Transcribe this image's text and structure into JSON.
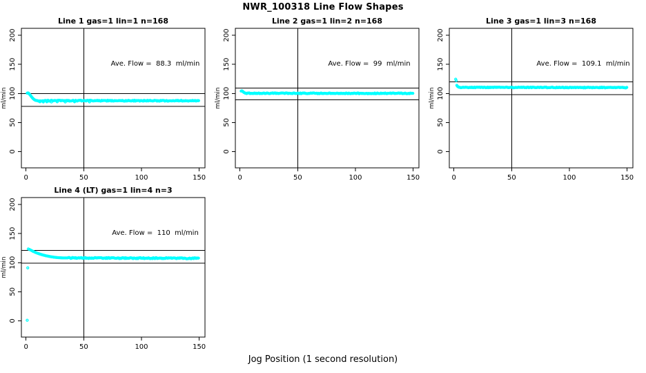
{
  "page_title": "NWR_100318  Line Flow Shapes",
  "x_axis_label": "Jog Position (1 second resolution)",
  "colors": {
    "points": "#00FFFF",
    "axis": "#000000",
    "background": "#FFFFFF"
  },
  "chart_data": [
    {
      "type": "scatter",
      "title": "Line 1 gas=1 lin=1 n=168",
      "line": 1,
      "gas": 1,
      "lin": 1,
      "n": 168,
      "ave_flow": 88.3,
      "annotation": "Ave. Flow =  88.3  ml/min",
      "ylabel": "ml/min",
      "xlim": [
        -4,
        155
      ],
      "ylim": [
        -28,
        212
      ],
      "xticks": [
        0,
        50,
        100,
        150
      ],
      "yticks": [
        0,
        50,
        100,
        150,
        200
      ],
      "vline_x": 50,
      "hlines_y": [
        100,
        78
      ],
      "transient": [
        [
          1,
          100.4
        ],
        [
          1.5,
          100.9
        ],
        [
          2,
          100.7
        ],
        [
          2.5,
          99.9
        ],
        [
          3,
          98.8
        ],
        [
          3.5,
          97.6
        ],
        [
          4,
          96.3
        ],
        [
          4.5,
          95.0
        ],
        [
          5,
          93.7
        ],
        [
          5.5,
          92.5
        ],
        [
          6,
          91.4
        ],
        [
          6.5,
          90.4
        ],
        [
          7,
          89.6
        ],
        [
          7.5,
          88.9
        ],
        [
          8,
          88.4
        ],
        [
          8.5,
          88.1
        ],
        [
          9,
          87.9
        ],
        [
          9.5,
          87.7
        ],
        [
          10,
          87.6
        ]
      ],
      "plateau": {
        "from": 10,
        "to": 150,
        "step": 0.75,
        "start": 87.6,
        "end": 87.4,
        "noise": 0.7,
        "seed": 1
      },
      "outliers": [
        [
          12,
          85.7
        ],
        [
          15,
          85.4
        ],
        [
          18,
          85.6
        ],
        [
          22,
          85.3
        ],
        [
          27,
          85.6
        ],
        [
          34,
          85.4
        ],
        [
          42,
          85.7
        ],
        [
          55,
          85.5
        ]
      ]
    },
    {
      "type": "scatter",
      "title": "Line 2 gas=1 lin=2 n=168",
      "line": 2,
      "gas": 1,
      "lin": 2,
      "n": 168,
      "ave_flow": 99,
      "annotation": "Ave. Flow =  99  ml/min",
      "ylabel": "ml/min",
      "xlim": [
        -4,
        155
      ],
      "ylim": [
        -28,
        212
      ],
      "xticks": [
        0,
        50,
        100,
        150
      ],
      "yticks": [
        0,
        50,
        100,
        150,
        200
      ],
      "vline_x": 50,
      "hlines_y": [
        109,
        89
      ],
      "transient": [
        [
          1,
          104.0
        ],
        [
          1.5,
          104.5
        ],
        [
          2,
          104.1
        ],
        [
          2.5,
          103.3
        ],
        [
          3,
          102.4
        ],
        [
          3.5,
          101.6
        ],
        [
          4,
          101.0
        ],
        [
          4.5,
          100.6
        ],
        [
          5,
          100.4
        ]
      ],
      "plateau": {
        "from": 5,
        "to": 150,
        "step": 0.75,
        "start": 100.3,
        "end": 100.1,
        "noise": 0.65,
        "seed": 2
      },
      "outliers": []
    },
    {
      "type": "scatter",
      "title": "Line 3 gas=1 lin=3 n=168",
      "line": 3,
      "gas": 1,
      "lin": 3,
      "n": 168,
      "ave_flow": 109.1,
      "annotation": "Ave. Flow =  109.1  ml/min",
      "ylabel": "ml/min",
      "xlim": [
        -4,
        155
      ],
      "ylim": [
        -28,
        212
      ],
      "xticks": [
        0,
        50,
        100,
        150
      ],
      "yticks": [
        0,
        50,
        100,
        150,
        200
      ],
      "vline_x": 50,
      "hlines_y": [
        120,
        98
      ],
      "transient": [
        [
          1.5,
          124.5
        ],
        [
          2,
          122.2
        ],
        [
          2.5,
          114.0
        ],
        [
          3,
          112.5
        ],
        [
          3.5,
          111.6
        ],
        [
          4,
          111.0
        ],
        [
          4.5,
          110.7
        ],
        [
          5,
          110.5
        ]
      ],
      "plateau": {
        "from": 5,
        "to": 150,
        "step": 0.75,
        "start": 110.4,
        "end": 110.1,
        "noise": 0.6,
        "seed": 3
      },
      "outliers": []
    },
    {
      "type": "scatter",
      "title": "Line 4 (LT) gas=1 lin=4 n=3",
      "line": 4,
      "gas": 1,
      "lin": 4,
      "n": 3,
      "ave_flow": 110,
      "annotation": "Ave. Flow =  110  ml/min",
      "ylabel": "ml/min",
      "xlim": [
        -4,
        155
      ],
      "ylim": [
        -28,
        212
      ],
      "xticks": [
        0,
        50,
        100,
        150
      ],
      "yticks": [
        0,
        50,
        100,
        150,
        200
      ],
      "vline_x": 50,
      "hlines_y": [
        121,
        99
      ],
      "transient": [
        [
          2,
          123.6
        ],
        [
          3,
          122.7
        ],
        [
          4,
          121.7
        ],
        [
          5,
          120.6
        ],
        [
          6,
          119.6
        ],
        [
          7,
          118.7
        ],
        [
          8,
          117.8
        ],
        [
          9,
          117.0
        ],
        [
          10,
          116.2
        ],
        [
          11,
          115.5
        ],
        [
          12,
          114.8
        ],
        [
          13,
          114.2
        ],
        [
          14,
          113.6
        ],
        [
          15,
          113.0
        ],
        [
          16,
          112.5
        ],
        [
          17,
          112.0
        ],
        [
          18,
          111.6
        ],
        [
          19,
          111.2
        ],
        [
          20,
          110.8
        ],
        [
          21,
          110.4
        ],
        [
          22,
          110.1
        ],
        [
          23,
          109.8
        ],
        [
          24,
          109.5
        ],
        [
          25,
          109.2
        ],
        [
          26,
          109.0
        ],
        [
          27,
          108.8
        ],
        [
          28,
          108.6
        ],
        [
          29,
          108.5
        ],
        [
          30,
          108.4
        ],
        [
          31,
          108.3
        ],
        [
          32,
          108.2
        ],
        [
          33,
          108.2
        ],
        [
          34,
          108.1
        ],
        [
          35,
          108.1
        ],
        [
          36,
          108.1
        ]
      ],
      "plateau": {
        "from": 36,
        "to": 150,
        "step": 0.7,
        "start": 108.1,
        "end": 107.5,
        "noise": 0.85,
        "seed": 4
      },
      "outliers": [
        [
          1,
          1
        ],
        [
          1.5,
          91
        ]
      ]
    }
  ]
}
